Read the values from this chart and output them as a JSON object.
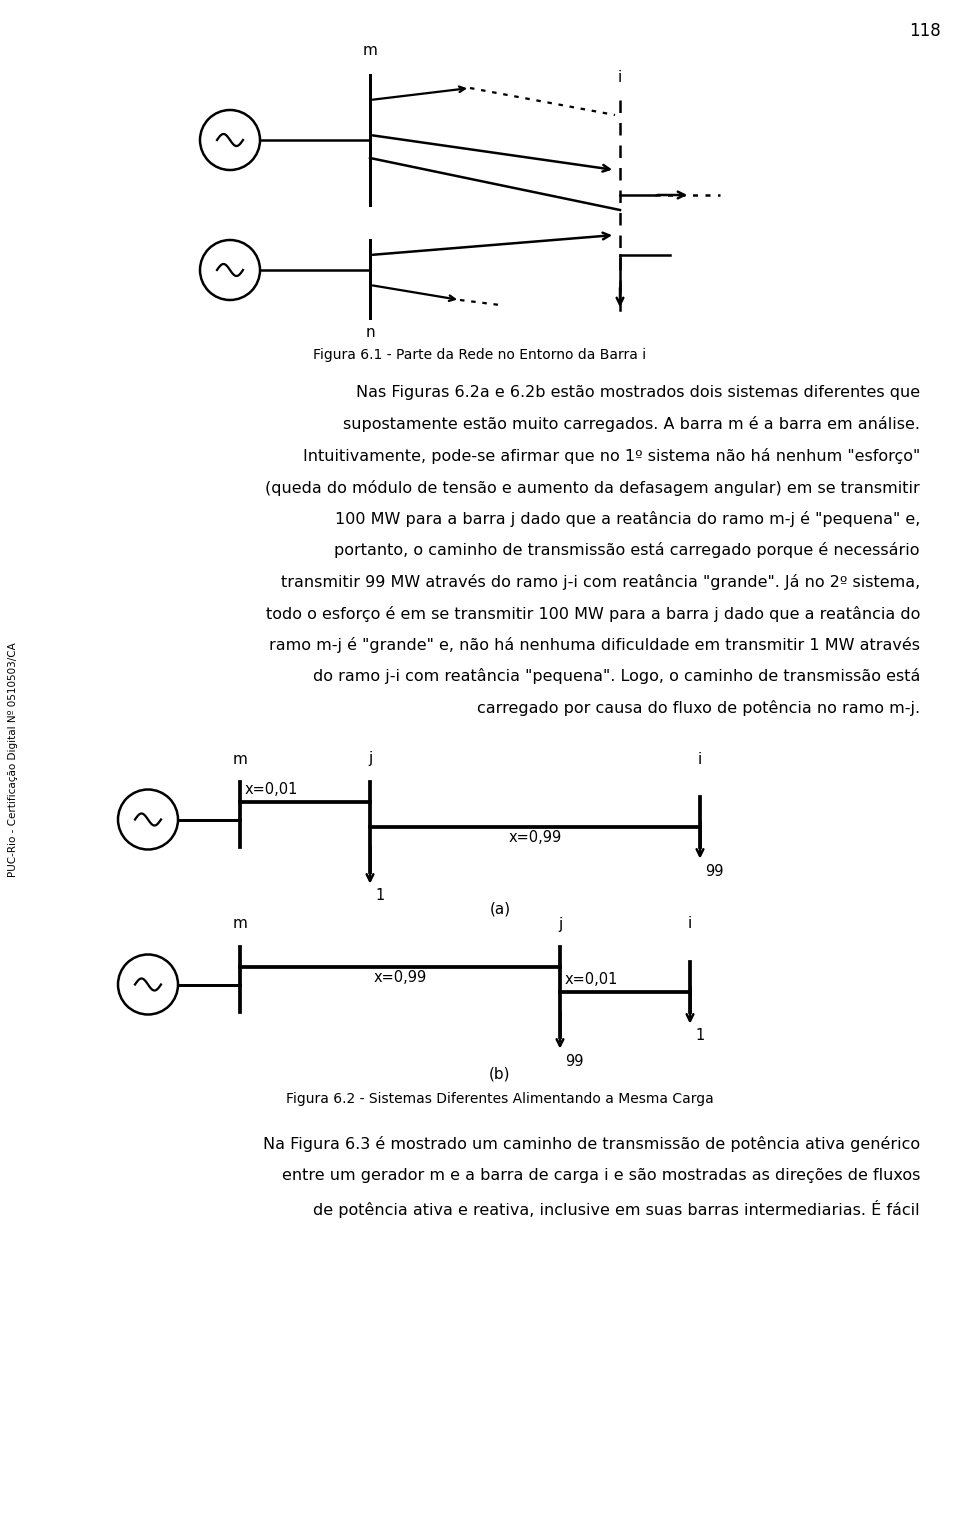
{
  "page_number": "118",
  "fig1_caption": "Figura 6.1 - Parte da Rede no Entorno da Barra i",
  "fig2_caption": "Figura 6.2 - Sistemas Diferentes Alimentando a Mesma Carga",
  "lines_para1": [
    "Nas Figuras 6.2a e 6.2b estão mostrados dois sistemas diferentes que",
    "supostamente estão muito carregados. A barra m é a barra em análise.",
    "Intuitivamente, pode-se afirmar que no 1º sistema não há nenhum \"esforço\"",
    "(queda do módulo de tensão e aumento da defasagem angular) em se transmitir",
    "100 MW para a barra j dado que a reatância do ramo m-j é \"pequena\" e,",
    "portanto, o caminho de transmissão está carregado porque é necessário",
    "transmitir 99 MW através do ramo j-i com reatância \"grande\". Já no 2º sistema,",
    "todo o esforço é em se transmitir 100 MW para a barra j dado que a reatância do",
    "ramo m-j é \"grande\" e, não há nenhuma dificuldade em transmitir 1 MW através",
    "do ramo j-i com reatância \"pequena\". Logo, o caminho de transmissão está",
    "carregado por causa do fluxo de potência no ramo m-j."
  ],
  "lines_para2": [
    "Na Figura 6.3 é mostrado um caminho de transmissão de potência ativa genérico",
    "entre um gerador m e a barra de carga i e são mostradas as direções de fluxos",
    "de potência ativa e reativa, inclusive em suas barras intermediarias. É fácil"
  ],
  "sidebar_text": "PUC-Rio - Certificação Digital Nº 0510503/CA",
  "bg_color": "#ffffff",
  "text_color": "#000000",
  "diagram_a_x_mj": "x=0,01",
  "diagram_a_x_ji": "x=0,99",
  "diagram_a_load_j": "1",
  "diagram_a_load_i": "99",
  "diagram_b_x_mj": "x=0,99",
  "diagram_b_x_ji": "x=0,01",
  "diagram_b_load_j": "99",
  "diagram_b_load_i": "1",
  "sub_a": "(a)",
  "sub_b": "(b)"
}
